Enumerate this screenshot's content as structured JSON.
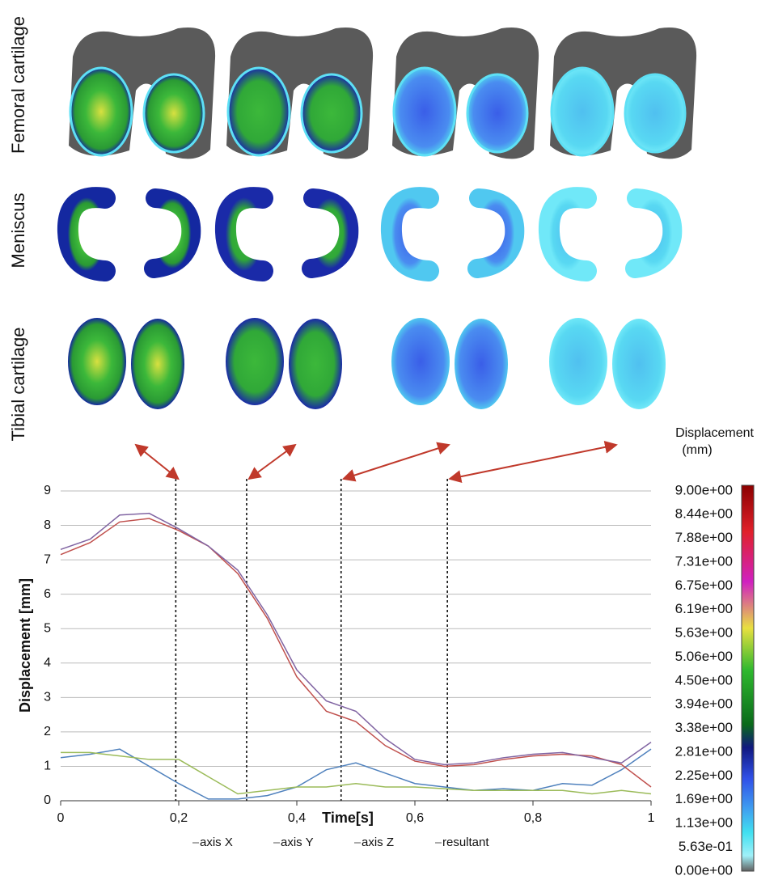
{
  "row_labels": [
    "Femoral cartilage",
    "Meniscus",
    "Tibial cartilage"
  ],
  "chart_data": {
    "type": "line",
    "y_label": "Displacement [mm]",
    "x_label": "Time[s]",
    "x": [
      0,
      0.05,
      0.1,
      0.15,
      0.2,
      0.25,
      0.3,
      0.35,
      0.4,
      0.45,
      0.5,
      0.55,
      0.6,
      0.65,
      0.7,
      0.75,
      0.8,
      0.85,
      0.9,
      0.95,
      1
    ],
    "series": [
      {
        "name": "axis X",
        "color": "#4f81bd",
        "values": [
          1.25,
          1.35,
          1.5,
          1.0,
          0.5,
          0.05,
          0.05,
          0.15,
          0.4,
          0.9,
          1.1,
          0.8,
          0.5,
          0.4,
          0.3,
          0.35,
          0.3,
          0.5,
          0.45,
          0.9,
          1.5
        ]
      },
      {
        "name": "axis Y",
        "color": "#c0504d",
        "values": [
          7.15,
          7.5,
          8.1,
          8.2,
          7.85,
          7.4,
          6.6,
          5.3,
          3.6,
          2.6,
          2.3,
          1.6,
          1.15,
          1.0,
          1.05,
          1.2,
          1.3,
          1.35,
          1.3,
          1.05,
          0.4
        ]
      },
      {
        "name": "axis Z",
        "color": "#9bbb59",
        "values": [
          1.4,
          1.4,
          1.3,
          1.2,
          1.2,
          0.7,
          0.2,
          0.3,
          0.4,
          0.4,
          0.5,
          0.4,
          0.4,
          0.35,
          0.3,
          0.3,
          0.3,
          0.3,
          0.2,
          0.3,
          0.2
        ]
      },
      {
        "name": "resultant",
        "color": "#8064a2",
        "values": [
          7.3,
          7.6,
          8.3,
          8.35,
          7.9,
          7.4,
          6.7,
          5.4,
          3.8,
          2.9,
          2.6,
          1.8,
          1.2,
          1.05,
          1.1,
          1.25,
          1.35,
          1.4,
          1.25,
          1.1,
          1.7
        ]
      }
    ],
    "xlim": [
      0,
      1
    ],
    "xticks": [
      0,
      {
        "value": 0.2,
        "label": "0,2"
      },
      {
        "value": 0.4,
        "label": "0,4"
      },
      {
        "value": 0.6,
        "label": "0,6"
      },
      {
        "value": 0.8,
        "label": "0,8"
      },
      1
    ],
    "ylim": [
      0,
      9
    ],
    "yticks": [
      0,
      1,
      2,
      3,
      4,
      5,
      6,
      7,
      8,
      9
    ],
    "grid": true,
    "time_markers": [
      0.195,
      0.315,
      0.475,
      0.655
    ],
    "colorbar": {
      "title": [
        "Displacement",
        "(mm)"
      ],
      "lim": [
        0,
        9
      ],
      "ticks": [
        {
          "value": 9,
          "label": "9.00e+00"
        },
        {
          "value": 8.44,
          "label": "8.44e+00"
        },
        {
          "value": 7.88,
          "label": "7.88e+00"
        },
        {
          "value": 7.31,
          "label": "7.31e+00"
        },
        {
          "value": 6.75,
          "label": "6.75e+00"
        },
        {
          "value": 6.19,
          "label": "6.19e+00"
        },
        {
          "value": 5.63,
          "label": "5.63e+00"
        },
        {
          "value": 5.06,
          "label": "5.06e+00"
        },
        {
          "value": 4.5,
          "label": "4.50e+00"
        },
        {
          "value": 3.94,
          "label": "3.94e+00"
        },
        {
          "value": 3.38,
          "label": "3.38e+00"
        },
        {
          "value": 2.81,
          "label": "2.81e+00"
        },
        {
          "value": 2.25,
          "label": "2.25e+00"
        },
        {
          "value": 1.69,
          "label": "1.69e+00"
        },
        {
          "value": 1.13,
          "label": "1.13e+00"
        },
        {
          "value": 0.563,
          "label": "5.63e-01"
        },
        {
          "value": 0,
          "label": "0.00e+00"
        }
      ]
    }
  }
}
